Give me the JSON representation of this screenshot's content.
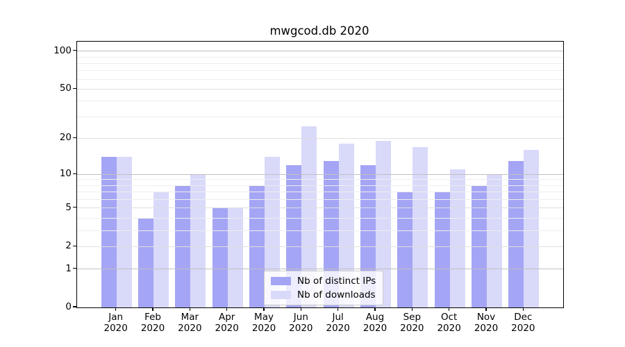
{
  "chart_data": {
    "type": "bar",
    "title": "mwgcod.db 2020",
    "categories": [
      "Jan 2020",
      "Feb 2020",
      "Mar 2020",
      "Apr 2020",
      "May 2020",
      "Jun 2020",
      "Jul 2020",
      "Aug 2020",
      "Sep 2020",
      "Oct 2020",
      "Nov 2020",
      "Dec 2020"
    ],
    "series": [
      {
        "name": "Nb of distinct IPs",
        "color": "#a5a5f5",
        "values": [
          14,
          4,
          8,
          5,
          8,
          12,
          13,
          12,
          7,
          7,
          8,
          13
        ]
      },
      {
        "name": "Nb of downloads",
        "color": "#d9d9fa",
        "values": [
          14,
          7,
          10,
          5,
          14,
          25,
          18,
          19,
          17,
          11,
          10,
          16
        ]
      }
    ],
    "xlabel": "",
    "ylabel": "",
    "y_axis": {
      "scale": "log1p",
      "tick_labels": [
        "100",
        "50",
        "20",
        "10",
        "5",
        "2",
        "1",
        "0"
      ],
      "tick_values": [
        100,
        50,
        20,
        10,
        5,
        2,
        1,
        0
      ],
      "major_grid_values": [
        1,
        10,
        100
      ],
      "labeled_minor_grid_values": [
        2,
        5,
        20,
        50
      ],
      "minor_grid_values": [
        3,
        4,
        6,
        7,
        8,
        9,
        30,
        40,
        60,
        70,
        80,
        90
      ],
      "ylim": [
        0,
        119
      ]
    },
    "legend": {
      "position": "lower center",
      "entries": [
        "Nb of distinct IPs",
        "Nb of downloads"
      ]
    },
    "grid": true,
    "colors": {
      "background": "#ffffff",
      "spine": "#000000",
      "major_grid": "#c0c0c0",
      "labeled_minor_grid": "#dfdfdf",
      "minor_grid": "#eeeeee",
      "text": "#000000"
    }
  }
}
